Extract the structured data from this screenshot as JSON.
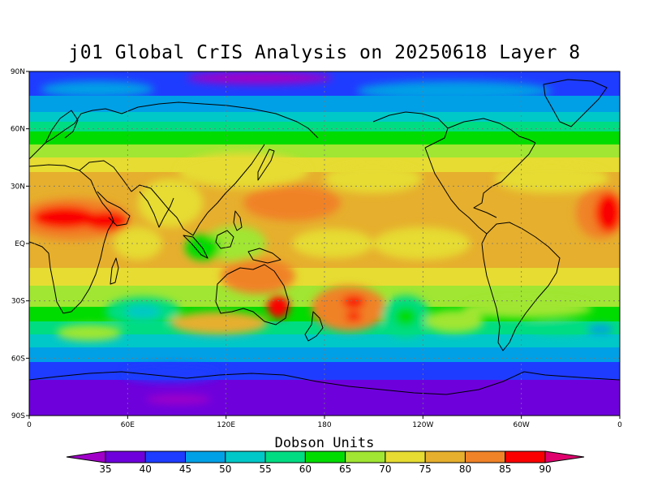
{
  "title": "j01 Global CrIS Analysis on 20250618 Layer 8",
  "map": {
    "lat_labels": [
      "90N",
      "60N",
      "30N",
      "EQ",
      "30S",
      "60S",
      "90S"
    ],
    "lon_labels": [
      "0",
      "60E",
      "120E",
      "180",
      "120W",
      "60W",
      "0"
    ],
    "grid": "dotted",
    "projection": "equirectangular"
  },
  "colorbar": {
    "title": "Dobson Units",
    "levels": [
      "35",
      "40",
      "45",
      "50",
      "55",
      "60",
      "65",
      "70",
      "75",
      "80",
      "85",
      "90"
    ],
    "colors": [
      "#a000c8",
      "#6e00dc",
      "#1e3cff",
      "#00a0e6",
      "#00c8c8",
      "#00dc82",
      "#00dc00",
      "#a0e632",
      "#e6dc32",
      "#e6af2d",
      "#f08228",
      "#fa0000",
      "#e0006e"
    ]
  },
  "background_color": "#ffffff"
}
